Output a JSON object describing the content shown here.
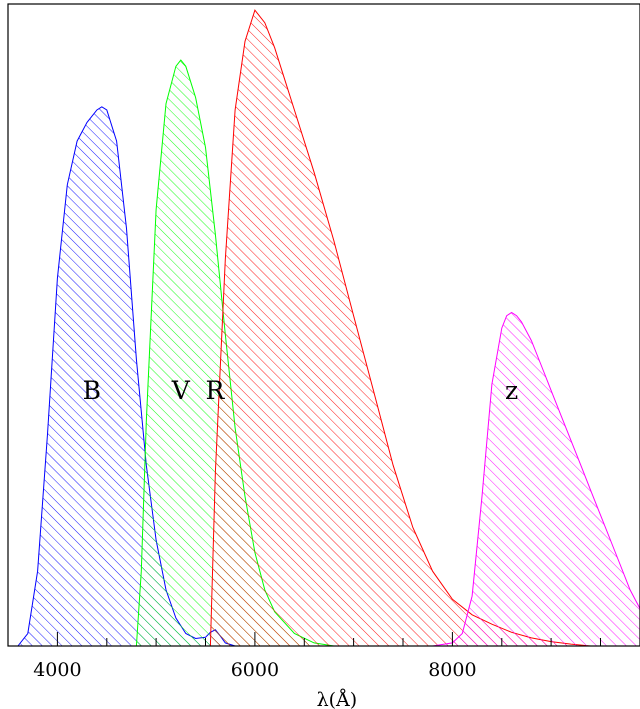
{
  "chart_data": {
    "type": "area",
    "title": "",
    "xlabel": "λ(Å)",
    "ylabel": "",
    "xlim": [
      3500,
      9900
    ],
    "ylim": [
      0,
      1.03
    ],
    "x_ticks": [
      4000,
      6000,
      8000
    ],
    "x_tick_labels": [
      "4000",
      "6000",
      "8000"
    ],
    "grid": false,
    "series": [
      {
        "name": "B",
        "color": "#0000ff",
        "x": [
          3600,
          3700,
          3800,
          3900,
          4000,
          4100,
          4200,
          4300,
          4400,
          4450,
          4500,
          4600,
          4700,
          4800,
          4900,
          5000,
          5100,
          5200,
          5300,
          5400,
          5500,
          5550,
          5600,
          5650,
          5700,
          5800
        ],
        "y": [
          0.0,
          0.02,
          0.12,
          0.34,
          0.59,
          0.74,
          0.81,
          0.84,
          0.86,
          0.865,
          0.86,
          0.81,
          0.67,
          0.46,
          0.29,
          0.17,
          0.09,
          0.045,
          0.02,
          0.012,
          0.014,
          0.022,
          0.026,
          0.016,
          0.005,
          0.0
        ]
      },
      {
        "name": "V",
        "color": "#00ff00",
        "x": [
          4800,
          4850,
          4900,
          5000,
          5100,
          5200,
          5250,
          5300,
          5400,
          5500,
          5600,
          5700,
          5800,
          5900,
          6000,
          6100,
          6200,
          6400,
          6600,
          6800
        ],
        "y": [
          0.0,
          0.12,
          0.36,
          0.7,
          0.87,
          0.93,
          0.94,
          0.93,
          0.88,
          0.8,
          0.66,
          0.5,
          0.35,
          0.24,
          0.15,
          0.09,
          0.055,
          0.02,
          0.005,
          0.0
        ]
      },
      {
        "name": "R",
        "color": "#ff0000",
        "x": [
          5550,
          5600,
          5700,
          5800,
          5900,
          6000,
          6100,
          6200,
          6300,
          6400,
          6600,
          6800,
          7000,
          7200,
          7400,
          7600,
          7800,
          8000,
          8200,
          8400,
          8600,
          8800,
          9000,
          9200,
          9400
        ],
        "y": [
          0.0,
          0.28,
          0.62,
          0.86,
          0.97,
          1.02,
          1.0,
          0.96,
          0.91,
          0.86,
          0.76,
          0.65,
          0.53,
          0.41,
          0.29,
          0.19,
          0.12,
          0.075,
          0.05,
          0.035,
          0.022,
          0.013,
          0.007,
          0.003,
          0.0
        ]
      },
      {
        "name": "z",
        "color": "#ff00ff",
        "x": [
          7800,
          8000,
          8100,
          8200,
          8300,
          8400,
          8500,
          8550,
          8600,
          8650,
          8700,
          8800,
          8900,
          9000,
          9100,
          9200,
          9300,
          9400,
          9500,
          9600,
          9700,
          9800,
          9900
        ],
        "y": [
          0.0,
          0.005,
          0.02,
          0.08,
          0.24,
          0.42,
          0.51,
          0.53,
          0.535,
          0.53,
          0.52,
          0.49,
          0.45,
          0.41,
          0.37,
          0.33,
          0.29,
          0.25,
          0.21,
          0.17,
          0.13,
          0.09,
          0.06
        ]
      }
    ]
  }
}
